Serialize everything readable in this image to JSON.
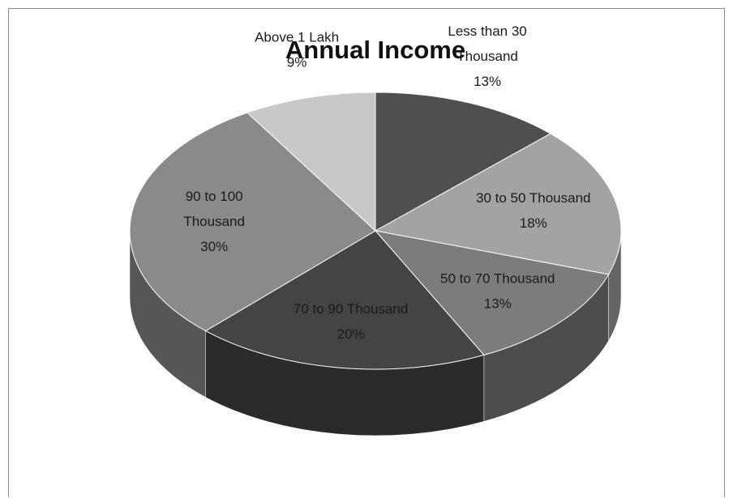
{
  "chart_data": {
    "type": "pie",
    "title": "Annual Income",
    "slices": [
      {
        "label": "Less than 30 Thousand",
        "label_lines": [
          "Less than 30",
          "Thousand"
        ],
        "value": 13,
        "pct": "13%",
        "color": "#4f4f4f"
      },
      {
        "label": "30 to 50 Thousand",
        "label_lines": [
          "30 to 50 Thousand"
        ],
        "value": 18,
        "pct": "18%",
        "color": "#a3a3a3"
      },
      {
        "label": "50 to 70 Thousand",
        "label_lines": [
          "50 to 70 Thousand"
        ],
        "value": 13,
        "pct": "13%",
        "color": "#7c7c7c"
      },
      {
        "label": "70 to 90 Thousand",
        "label_lines": [
          "70 to 90 Thousand"
        ],
        "value": 20,
        "pct": "20%",
        "color": "#444444"
      },
      {
        "label": "90 to 100 Thousand",
        "label_lines": [
          "90 to 100",
          "Thousand"
        ],
        "value": 30,
        "pct": "30%",
        "color": "#8a8a8a"
      },
      {
        "label": "Above 1 Lakh",
        "label_lines": [
          "Above 1 Lakh"
        ],
        "value": 9,
        "pct": "9%",
        "color": "#c8c8c8"
      }
    ],
    "style": "3d-pie",
    "legend": "none"
  }
}
